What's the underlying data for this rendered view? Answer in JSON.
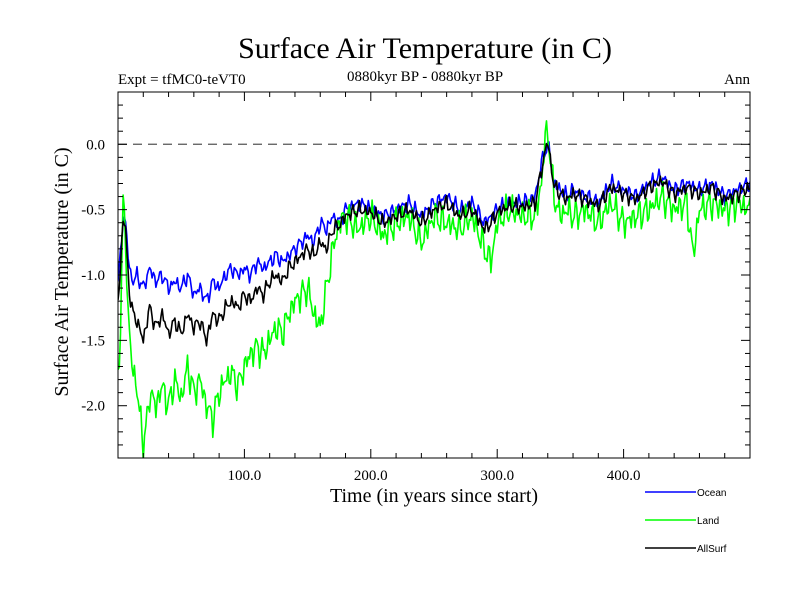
{
  "chart_data": {
    "type": "line",
    "title": "Surface Air Temperature (in C)",
    "subtitle_left": "Expt = tfMC0-teVT0",
    "subtitle_center": "0880kyr BP - 0880kyr BP",
    "subtitle_right": "Ann",
    "xlabel": "Time (in years since start)",
    "ylabel": "Surface Air Temperature (in C)",
    "xlim": [
      0,
      500
    ],
    "ylim": [
      -2.4,
      0.4
    ],
    "xticks": [
      100,
      200,
      300,
      400
    ],
    "xtick_labels": [
      "100.0",
      "200.0",
      "300.0",
      "400.0"
    ],
    "yticks": [
      0.0,
      -0.5,
      -1.0,
      -1.5,
      -2.0
    ],
    "ytick_labels": [
      "0.0",
      "-0.5",
      "-1.0",
      "-1.5",
      "-2.0"
    ],
    "reference_line": {
      "y": 0.0,
      "style": "dashed"
    },
    "series": [
      {
        "name": "Ocean",
        "color": "#0000ff",
        "x": [
          0,
          2,
          4,
          6,
          8,
          10,
          12,
          15,
          20,
          25,
          30,
          35,
          40,
          45,
          50,
          55,
          60,
          65,
          70,
          75,
          80,
          85,
          90,
          95,
          100,
          105,
          110,
          115,
          120,
          125,
          130,
          135,
          140,
          145,
          150,
          155,
          160,
          165,
          170,
          175,
          180,
          190,
          200,
          210,
          220,
          230,
          240,
          250,
          260,
          270,
          280,
          290,
          295,
          300,
          310,
          320,
          330,
          335,
          338,
          340,
          342,
          345,
          350,
          355,
          360,
          370,
          380,
          390,
          400,
          410,
          420,
          430,
          440,
          450,
          460,
          470,
          480,
          490,
          500
        ],
        "values": [
          -1.05,
          -0.85,
          -0.55,
          -0.6,
          -0.85,
          -1.0,
          -1.05,
          -1.0,
          -1.1,
          -0.95,
          -1.05,
          -1.0,
          -1.1,
          -1.05,
          -1.1,
          -1.0,
          -1.15,
          -1.1,
          -1.2,
          -1.05,
          -1.1,
          -1.0,
          -0.95,
          -1.0,
          -0.95,
          -1.0,
          -0.9,
          -0.95,
          -0.9,
          -0.85,
          -0.9,
          -0.85,
          -0.8,
          -0.75,
          -0.7,
          -0.75,
          -0.6,
          -0.65,
          -0.55,
          -0.6,
          -0.5,
          -0.45,
          -0.5,
          -0.55,
          -0.5,
          -0.45,
          -0.55,
          -0.45,
          -0.4,
          -0.5,
          -0.45,
          -0.6,
          -0.55,
          -0.5,
          -0.45,
          -0.45,
          -0.4,
          -0.15,
          -0.05,
          0.0,
          -0.1,
          -0.3,
          -0.35,
          -0.4,
          -0.35,
          -0.4,
          -0.45,
          -0.3,
          -0.35,
          -0.4,
          -0.3,
          -0.25,
          -0.35,
          -0.3,
          -0.35,
          -0.3,
          -0.4,
          -0.35,
          -0.3
        ]
      },
      {
        "name": "Land",
        "color": "#00ff00",
        "x": [
          0,
          2,
          4,
          6,
          8,
          10,
          12,
          15,
          18,
          20,
          22,
          25,
          30,
          35,
          40,
          45,
          50,
          55,
          60,
          65,
          70,
          75,
          80,
          85,
          90,
          95,
          100,
          105,
          110,
          115,
          120,
          125,
          130,
          135,
          140,
          145,
          150,
          155,
          160,
          165,
          170,
          175,
          180,
          190,
          200,
          210,
          220,
          230,
          240,
          250,
          260,
          270,
          280,
          290,
          295,
          300,
          310,
          320,
          330,
          335,
          338,
          340,
          342,
          345,
          350,
          355,
          360,
          370,
          380,
          390,
          400,
          410,
          420,
          430,
          440,
          450,
          455,
          460,
          470,
          480,
          490,
          500
        ],
        "values": [
          -1.8,
          -1.4,
          -0.45,
          -0.7,
          -1.3,
          -1.6,
          -1.7,
          -1.9,
          -2.1,
          -2.3,
          -2.2,
          -1.9,
          -2.0,
          -1.85,
          -2.0,
          -1.8,
          -1.95,
          -1.7,
          -1.9,
          -1.8,
          -2.0,
          -2.1,
          -1.9,
          -1.8,
          -1.75,
          -1.85,
          -1.7,
          -1.6,
          -1.55,
          -1.6,
          -1.5,
          -1.4,
          -1.45,
          -1.3,
          -1.2,
          -1.15,
          -1.1,
          -1.3,
          -1.4,
          -1.1,
          -0.8,
          -0.6,
          -0.55,
          -0.65,
          -0.55,
          -0.7,
          -0.6,
          -0.55,
          -0.75,
          -0.55,
          -0.6,
          -0.65,
          -0.55,
          -0.8,
          -0.9,
          -0.6,
          -0.5,
          -0.55,
          -0.55,
          -0.3,
          0.05,
          0.1,
          -0.1,
          -0.4,
          -0.55,
          -0.5,
          -0.55,
          -0.5,
          -0.6,
          -0.45,
          -0.6,
          -0.55,
          -0.5,
          -0.4,
          -0.5,
          -0.45,
          -0.85,
          -0.5,
          -0.45,
          -0.5,
          -0.45,
          -0.5
        ]
      },
      {
        "name": "AllSurf",
        "color": "#000000",
        "x": [
          0,
          2,
          4,
          6,
          8,
          10,
          12,
          15,
          20,
          25,
          30,
          35,
          40,
          45,
          50,
          55,
          60,
          65,
          70,
          75,
          80,
          85,
          90,
          95,
          100,
          105,
          110,
          115,
          120,
          125,
          130,
          135,
          140,
          145,
          150,
          155,
          160,
          165,
          170,
          175,
          180,
          190,
          200,
          210,
          220,
          230,
          240,
          250,
          260,
          270,
          280,
          290,
          295,
          300,
          310,
          320,
          330,
          335,
          338,
          340,
          342,
          345,
          350,
          355,
          360,
          370,
          380,
          390,
          400,
          410,
          420,
          430,
          440,
          450,
          460,
          470,
          480,
          490,
          500
        ],
        "values": [
          -1.2,
          -0.95,
          -0.55,
          -0.65,
          -1.0,
          -1.2,
          -1.3,
          -1.35,
          -1.5,
          -1.25,
          -1.4,
          -1.3,
          -1.45,
          -1.35,
          -1.45,
          -1.3,
          -1.4,
          -1.35,
          -1.5,
          -1.3,
          -1.35,
          -1.25,
          -1.2,
          -1.25,
          -1.15,
          -1.2,
          -1.1,
          -1.15,
          -1.05,
          -1.0,
          -1.05,
          -0.95,
          -0.9,
          -0.85,
          -0.8,
          -0.85,
          -0.75,
          -0.8,
          -0.65,
          -0.62,
          -0.55,
          -0.5,
          -0.52,
          -0.6,
          -0.55,
          -0.5,
          -0.6,
          -0.5,
          -0.45,
          -0.55,
          -0.5,
          -0.65,
          -0.6,
          -0.52,
          -0.47,
          -0.48,
          -0.45,
          -0.2,
          -0.05,
          0.02,
          -0.12,
          -0.32,
          -0.38,
          -0.42,
          -0.38,
          -0.42,
          -0.47,
          -0.33,
          -0.38,
          -0.42,
          -0.33,
          -0.28,
          -0.38,
          -0.33,
          -0.38,
          -0.33,
          -0.42,
          -0.38,
          -0.33
        ]
      }
    ]
  }
}
